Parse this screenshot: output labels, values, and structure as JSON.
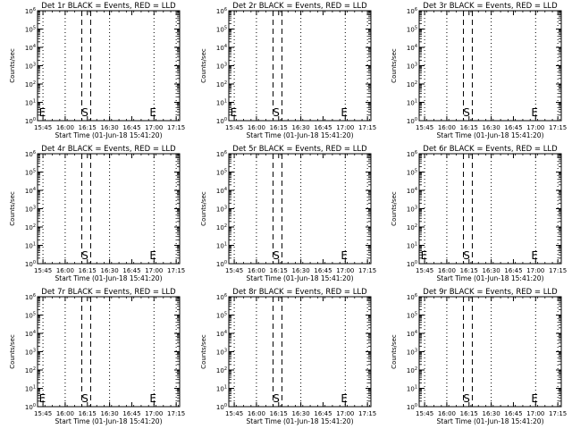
{
  "chart_data": {
    "type": "line",
    "panel_count": 9,
    "ylabel": "Counts/sec",
    "xlabel": "Start Time (01-Jun-18 15:41:20)",
    "x_tick_labels": [
      "15:45",
      "16:00",
      "16:15",
      "16:30",
      "16:45",
      "17:00",
      "17:15"
    ],
    "y_tick_labels": [
      "10^0",
      "10^1",
      "10^2",
      "10^3",
      "10^4",
      "10^5",
      "10^6"
    ],
    "y_log_scale": true,
    "xlim_minutes": [
      0,
      96
    ],
    "x_tick_minutes": [
      3.67,
      18.67,
      33.67,
      48.67,
      63.67,
      78.67,
      93.67
    ],
    "dotted_lines_minutes": [
      3.67,
      18.67,
      48.67,
      78.67,
      93.67
    ],
    "dashed_lines_minutes": [
      29.9,
      35.9
    ],
    "marker_S_minutes": 32,
    "marker_E_minutes": 78,
    "marker_start_E_minutes": 1,
    "panels": [
      {
        "title": "Det 1r BLACK = Events, RED = LLD",
        "start_E_visible": true
      },
      {
        "title": "Det 2r BLACK = Events, RED = LLD",
        "start_E_visible": true
      },
      {
        "title": "Det 3r BLACK = Events, RED = LLD",
        "start_E_visible": false
      },
      {
        "title": "Det 4r BLACK = Events, RED = LLD",
        "start_E_visible": false
      },
      {
        "title": "Det 5r BLACK = Events, RED = LLD",
        "start_E_visible": false
      },
      {
        "title": "Det 6r BLACK = Events, RED = LLD",
        "start_E_visible": true
      },
      {
        "title": "Det 7r BLACK = Events, RED = LLD",
        "start_E_visible": true
      },
      {
        "title": "Det 8r BLACK = Events, RED = LLD",
        "start_E_visible": false
      },
      {
        "title": "Det 9r BLACK = Events, RED = LLD",
        "start_E_visible": false
      }
    ],
    "markers": {
      "start": "S",
      "end": "E"
    },
    "series_colors": {
      "events": "#000000",
      "lld": "#ff0000"
    },
    "grid": false
  }
}
